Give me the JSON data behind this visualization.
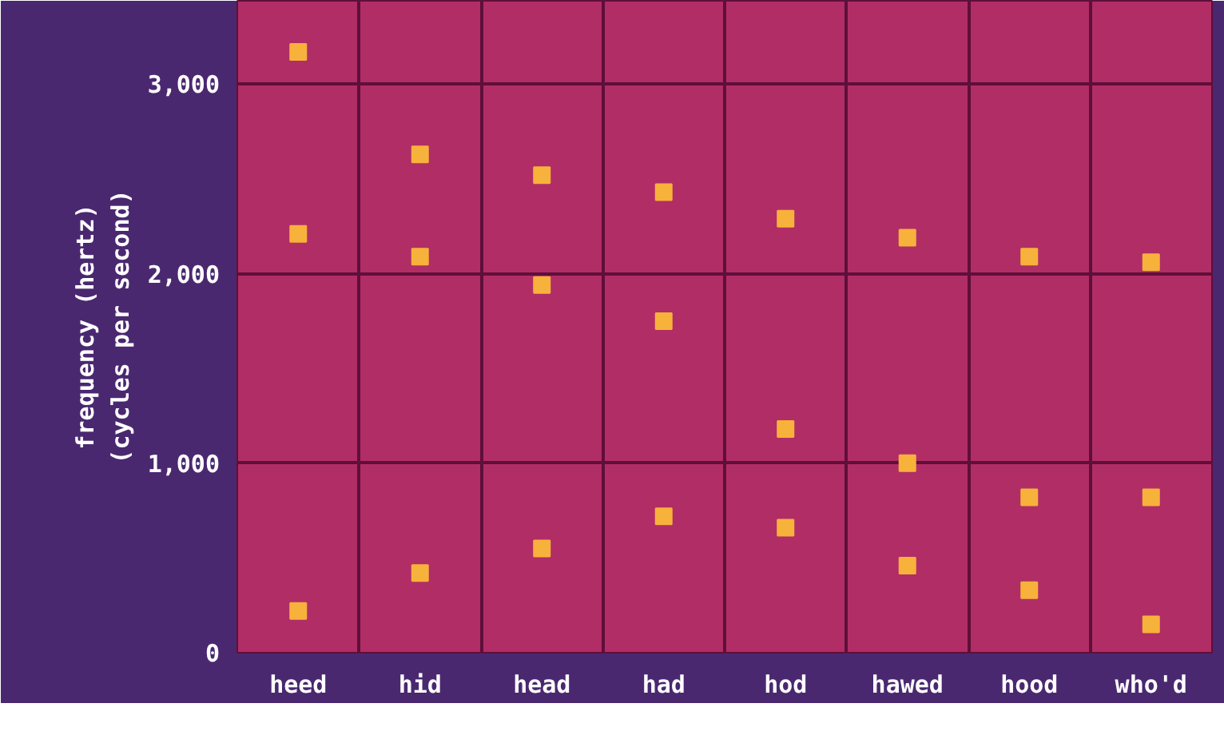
{
  "chart_data": {
    "type": "scatter",
    "ylabel": "frequency (hertz)\n(cycles per second)",
    "categories": [
      "heed",
      "hid",
      "head",
      "had",
      "hod",
      "hawed",
      "hood",
      "who'd"
    ],
    "series": [
      {
        "color": "#f7b23b",
        "values": [
          3170,
          2630,
          2520,
          2430,
          2290,
          2190,
          2090,
          2060
        ]
      },
      {
        "color": "#f7b23b",
        "values": [
          2210,
          2090,
          1940,
          1750,
          1180,
          1000,
          820,
          820
        ]
      },
      {
        "color": "#f7b23b",
        "values": [
          220,
          420,
          550,
          720,
          660,
          460,
          330,
          150
        ]
      }
    ],
    "ylim": [
      0,
      3440
    ],
    "yticks": [
      0,
      {
        "value": 1000,
        "label": "1,000"
      },
      {
        "value": 2000,
        "label": "2,000"
      },
      {
        "value": 3000,
        "label": "3,000"
      }
    ],
    "grid": true,
    "marker": "square"
  }
}
